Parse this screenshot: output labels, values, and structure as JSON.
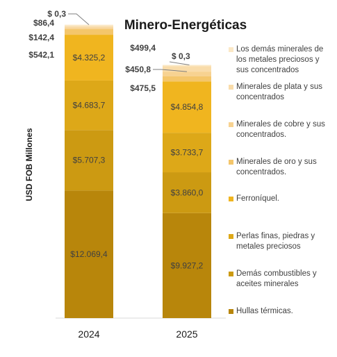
{
  "chart_data": {
    "type": "bar",
    "stacked": true,
    "title": "Minero-Energéticas",
    "ylabel": "USD FOB Millones",
    "xlabel": "",
    "categories": [
      "2024",
      "2025"
    ],
    "series": [
      {
        "name": "Hullas térmicas.",
        "color": "#B8860B",
        "values": [
          12069.4,
          9927.2
        ],
        "labels": [
          "$12.069,4",
          "$9.927,2"
        ]
      },
      {
        "name": "Demás combustibles y aceites minerales",
        "color": "#CC9A12",
        "values": [
          5707.3,
          3860.0
        ],
        "labels": [
          "$5.707,3",
          "$3.860,0"
        ]
      },
      {
        "name": "Perlas finas, piedras y metales preciosos",
        "color": "#DDA818",
        "values": [
          4683.7,
          3733.7
        ],
        "labels": [
          "$4.683,7",
          "$3.733,7"
        ]
      },
      {
        "name": "Ferroníquel.",
        "color": "#F0B51F",
        "values": [
          4325.2,
          4854.8
        ],
        "labels": [
          "$4.325,2",
          "$4.854,8"
        ]
      },
      {
        "name": "Minerales de oro y sus concentrados.",
        "color": "#F4C66B",
        "values": [
          542.1,
          475.5
        ],
        "labels": [
          "$542,1",
          "$475,5"
        ]
      },
      {
        "name": "Minerales de cobre y sus concentrados.",
        "color": "#F7D291",
        "values": [
          142.4,
          450.8
        ],
        "labels": [
          "$142,4",
          "$450,8"
        ]
      },
      {
        "name": "Minerales de plata y sus concentrados",
        "color": "#F9DCAA",
        "values": [
          86.4,
          499.4
        ],
        "labels": [
          "$86,4",
          "$499,4"
        ]
      },
      {
        "name": "Los demás minerales de los metales preciosos y sus concentrados",
        "color": "#FBE8C6",
        "values": [
          0.3,
          0.3
        ],
        "labels": [
          "$ 0,3",
          "$ 0,3"
        ]
      }
    ],
    "legend_position": "right",
    "grid": false
  }
}
